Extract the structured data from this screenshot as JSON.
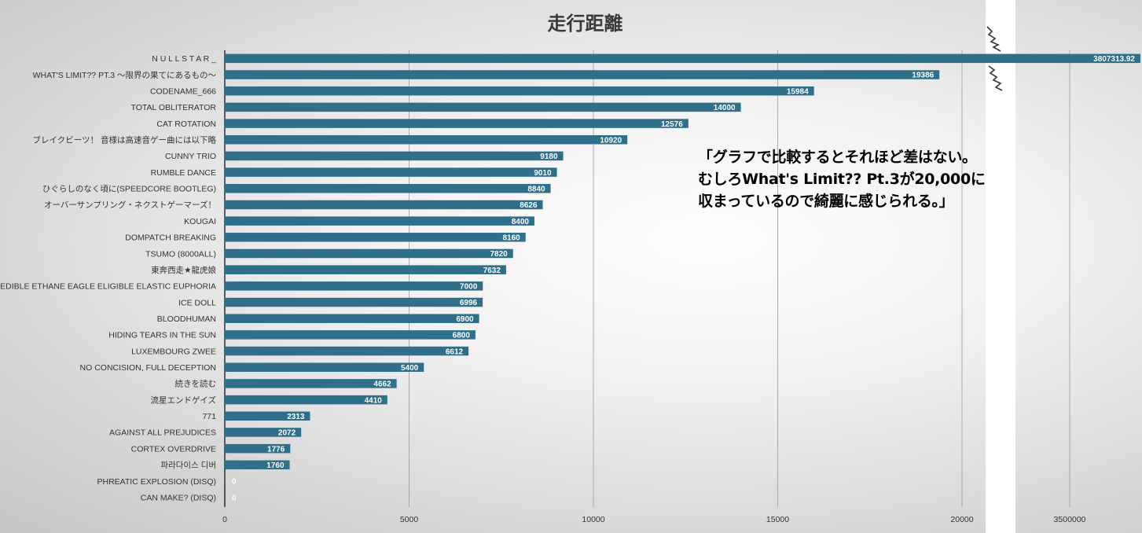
{
  "chart_data": {
    "type": "bar",
    "orientation": "horizontal",
    "title": "走行距離",
    "xlabel": "",
    "ylabel": "",
    "bar_color": "#2f6f8a",
    "grid": true,
    "x_axis_break": true,
    "xlim": [
      0,
      20000
    ],
    "xlim_broken_segment": [
      3500000,
      3807313.92
    ],
    "x_ticks": [
      "0",
      "5000",
      "10000",
      "15000",
      "20000",
      "3500000"
    ],
    "categories": [
      "N U L L S T A R _",
      "WHAT'S LIMIT?? PT.3 〜限界の果てにあるもの〜",
      "CODENAME_666",
      "TOTAL OBLITERATOR",
      "CAT ROTATION",
      "ブレイクビーツ！ 音様は高速音ゲー曲には以下略",
      "CUNNY TRIO",
      "RUMBLE DANCE",
      "ひぐらしのなく頃に(SPEEDCORE BOOTLEG)",
      "オーバーサンプリング・ネクストゲーマーズ！",
      "KOUGAI",
      "DOMPATCH BREAKING",
      "TSUMO (8000ALL)",
      "東奔西走★龍虎娘",
      "EDIBLE ETHANE EAGLE ELIGIBLE ELASTIC EUPHORIA",
      "ICE DOLL",
      "BLOODHUMAN",
      "HIDING TEARS IN THE SUN",
      "LUXEMBOURG ZWEE",
      "NO CONCISION, FULL DECEPTION",
      "続きを読む",
      "流星エンドゲイズ",
      "771",
      "AGAINST ALL PREJUDICES",
      "CORTEX OVERDRIVE",
      "파라다이스 디버",
      "PHREATIC EXPLOSION (DISQ)",
      "CAN MAKE? (DISQ)"
    ],
    "values": [
      3807313.92,
      19386,
      15984,
      14000,
      12576,
      10920,
      9180,
      9010,
      8840,
      8626,
      8400,
      8160,
      7820,
      7632,
      7000,
      6996,
      6900,
      6800,
      6612,
      5400,
      4662,
      4410,
      2313,
      2072,
      1776,
      1760,
      0,
      0
    ],
    "value_labels": [
      "3807313.92",
      "19386",
      "15984",
      "14000",
      "12576",
      "10920",
      "9180",
      "9010",
      "8840",
      "8626",
      "8400",
      "8160",
      "7820",
      "7632",
      "7000",
      "6996",
      "6900",
      "6800",
      "6612",
      "5400",
      "4662",
      "4410",
      "2313",
      "2072",
      "1776",
      "1760",
      "0",
      "0"
    ],
    "annotation": "「グラフで比較するとそれほど差はない。\nむしろWhat's Limit?? Pt.3が20,000に\n収まっているので綺麗に感じられる。」"
  }
}
